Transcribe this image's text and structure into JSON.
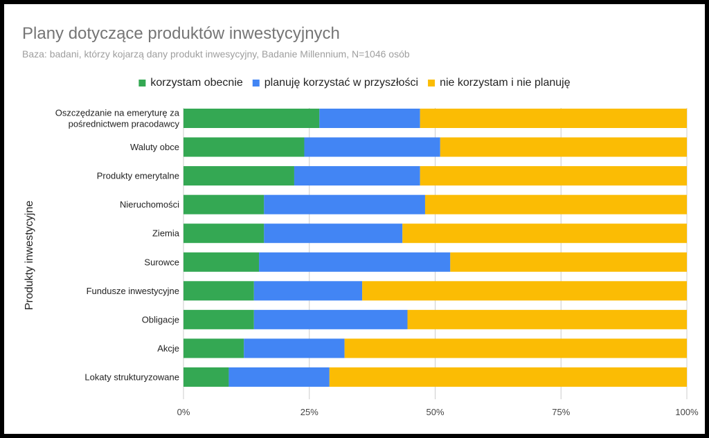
{
  "chart_data": {
    "type": "bar",
    "orientation": "horizontal",
    "stacked": true,
    "stack_mode": "percent",
    "title": "Plany dotyczące produktów inwestycyjnych",
    "subtitle": "Baza: badani, którzy kojarzą dany produkt inwesycyjny, Badanie Millennium, N=1046 osób",
    "ylabel": "Produkty inwestycyjne",
    "xlabel": "",
    "xlim": [
      0,
      100
    ],
    "x_ticks": [
      "0%",
      "25%",
      "50%",
      "75%",
      "100%"
    ],
    "x_tick_values": [
      0,
      25,
      50,
      75,
      100
    ],
    "legend_position": "top",
    "categories": [
      [
        "Oszczędzanie na emeryturę za",
        "pośrednictwem pracodawcy"
      ],
      [
        "Waluty obce"
      ],
      [
        "Produkty emerytalne"
      ],
      [
        "Nieruchomości"
      ],
      [
        "Ziemia"
      ],
      [
        "Surowce"
      ],
      [
        "Fundusze inwestycyjne"
      ],
      [
        "Obligacje"
      ],
      [
        "Akcje"
      ],
      [
        "Lokaty strukturyzowane"
      ]
    ],
    "series": [
      {
        "name": "korzystam obecnie",
        "color": "#34a853",
        "values": [
          27,
          24,
          22,
          16,
          16,
          15,
          14,
          14,
          12,
          9
        ]
      },
      {
        "name": "planuję korzystać w przyszłości",
        "color": "#4285f4",
        "values": [
          20,
          27,
          25,
          32,
          27.5,
          38,
          21.5,
          30.5,
          20,
          20
        ]
      },
      {
        "name": "nie korzystam i nie planuję",
        "color": "#fbbc04",
        "values": [
          53,
          49,
          53,
          52,
          56.5,
          47,
          64.5,
          55.5,
          68,
          71
        ]
      }
    ]
  }
}
